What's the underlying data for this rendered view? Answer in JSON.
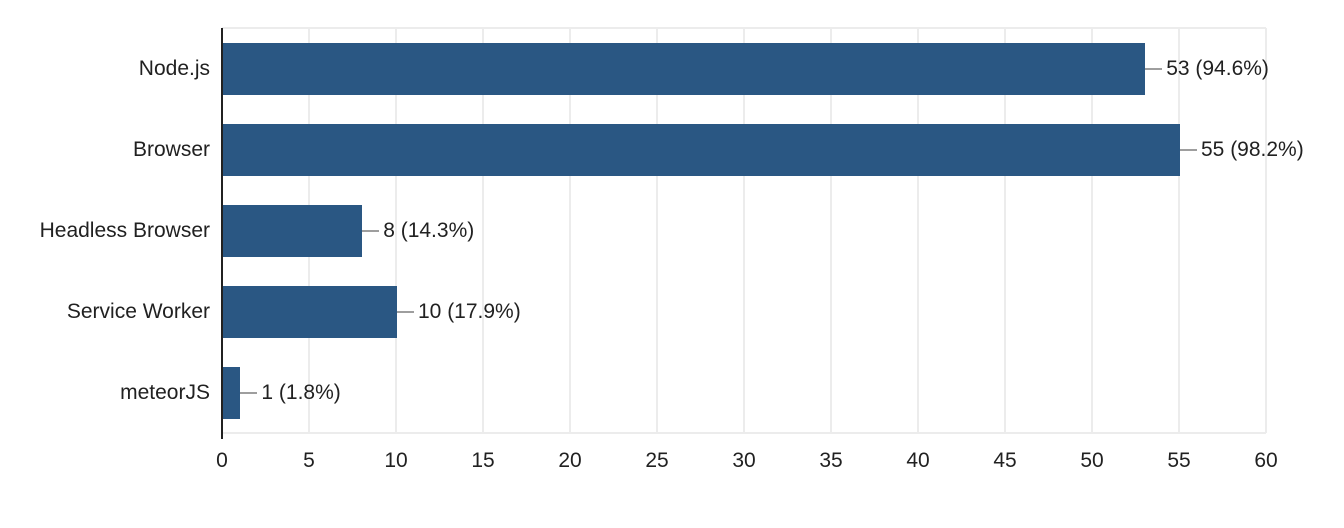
{
  "chart": {
    "background_color": "#ffffff",
    "bar_color": "#2a5783",
    "axis_color": "#212121",
    "gridline_color": "#ececec",
    "connector_color": "#9e9e9e",
    "text_color": "#212121"
  },
  "chart_data": {
    "type": "bar",
    "orientation": "horizontal",
    "title": "",
    "xlabel": "",
    "ylabel": "",
    "categories": [
      "Node.js",
      "Browser",
      "Headless Browser",
      "Service Worker",
      "meteorJS"
    ],
    "values": [
      53,
      55,
      8,
      10,
      1
    ],
    "value_labels": [
      "53 (94.6%)",
      "55 (98.2%)",
      "8 (14.3%)",
      "10 (17.9%)",
      "1 (1.8%)"
    ],
    "percentages": [
      94.6,
      98.2,
      14.3,
      17.9,
      1.8
    ],
    "xlim": [
      0,
      60
    ],
    "x_ticks": [
      0,
      5,
      10,
      15,
      20,
      25,
      30,
      35,
      40,
      45,
      50,
      55,
      60
    ],
    "grid": true,
    "legend": "none"
  }
}
